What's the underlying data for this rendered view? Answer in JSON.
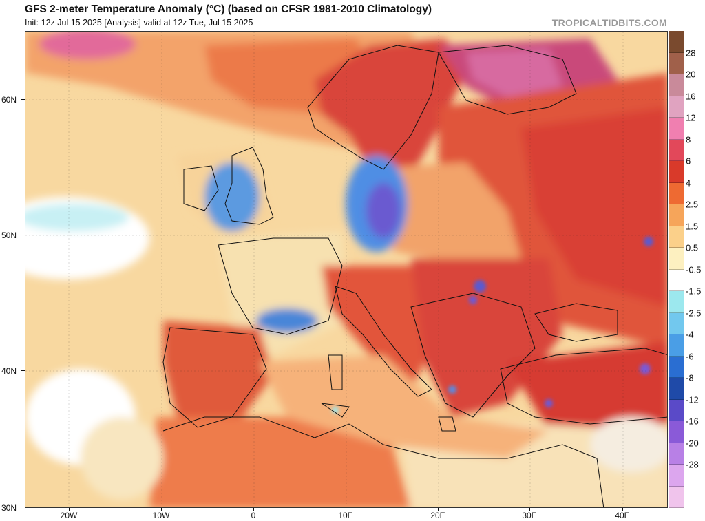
{
  "header": {
    "title": "GFS 2-meter Temperature Anomaly (°C) (based on CFSR 1981-2010 Climatology)",
    "subtitle": "Init: 12z Jul 15 2025   [Analysis]   valid at 12z Tue, Jul 15 2025",
    "credit": "TROPICALTIDBITS.COM"
  },
  "map": {
    "region": "Europe",
    "lat_labels": [
      "60N",
      "50N",
      "40N",
      "30N"
    ],
    "lon_labels": [
      "20W",
      "10W",
      "0",
      "10E",
      "20E",
      "30E",
      "40E"
    ]
  },
  "colorbar": {
    "labels": [
      "28",
      "20",
      "16",
      "12",
      "8",
      "6",
      "4",
      "2.5",
      "1.5",
      "0.5",
      "-0.5",
      "-1.5",
      "-2.5",
      "-4",
      "-6",
      "-8",
      "-12",
      "-16",
      "-20",
      "-28"
    ],
    "colors": [
      "#7a4a2e",
      "#a0604a",
      "#c98a9a",
      "#e0a3c0",
      "#f07fb0",
      "#e2485a",
      "#d93a2a",
      "#ee6a32",
      "#f6a55a",
      "#fbd08a",
      "#fdf0c0",
      "#ffffff",
      "#9ce8ee",
      "#72c8ee",
      "#4a9ee6",
      "#2a6ed2",
      "#1f4aa8",
      "#5a4ac8",
      "#8a5ad8",
      "#b880e6",
      "#dca6ee",
      "#f0c4ec"
    ]
  }
}
